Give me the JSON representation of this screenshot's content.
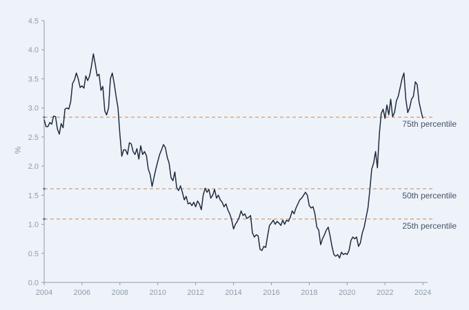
{
  "chart_data": {
    "type": "line",
    "ylabel": "%",
    "xlabel": "",
    "title": "",
    "xlim": [
      2004.0,
      2024.25
    ],
    "ylim": [
      0,
      4.5
    ],
    "x_ticks": [
      "2004",
      "2006",
      "2008",
      "2010",
      "2012",
      "2014",
      "2016",
      "2018",
      "2020",
      "2022",
      "2024"
    ],
    "y_ticks": [
      "0.0",
      "0.5",
      "1.0",
      "1.5",
      "2.0",
      "2.5",
      "3.0",
      "3.5",
      "4.0",
      "4.5"
    ],
    "grid": false,
    "colors": {
      "line": "#1c2a3f",
      "reference": "#d4a07c",
      "axis": "#8a9bb0"
    },
    "reference_lines": [
      {
        "label": "75th percentile",
        "value": 2.84
      },
      {
        "label": "50th percentile",
        "value": 1.61
      },
      {
        "label": "25th percentile",
        "value": 1.09
      }
    ],
    "series": [
      {
        "x": [
          2004.0,
          2004.1,
          2004.2,
          2004.3,
          2004.4,
          2004.5,
          2004.6,
          2004.7,
          2004.8,
          2004.9,
          2005.0,
          2005.1,
          2005.2,
          2005.3,
          2005.4,
          2005.5,
          2005.6,
          2005.7,
          2005.8,
          2005.9,
          2006.0,
          2006.1,
          2006.2,
          2006.3,
          2006.4,
          2006.5,
          2006.6,
          2006.7,
          2006.8,
          2006.9,
          2007.0,
          2007.1,
          2007.2,
          2007.3,
          2007.4,
          2007.5,
          2007.6,
          2007.7,
          2007.8,
          2007.9,
          2008.0,
          2008.1,
          2008.2,
          2008.3,
          2008.4,
          2008.5,
          2008.6,
          2008.7,
          2008.8,
          2008.9,
          2009.0,
          2009.1,
          2009.2,
          2009.3,
          2009.4,
          2009.5,
          2009.6,
          2009.7,
          2009.8,
          2009.9,
          2010.0,
          2010.1,
          2010.2,
          2010.3,
          2010.4,
          2010.5,
          2010.6,
          2010.7,
          2010.8,
          2010.9,
          2011.0,
          2011.1,
          2011.2,
          2011.3,
          2011.4,
          2011.5,
          2011.6,
          2011.7,
          2011.8,
          2011.9,
          2012.0,
          2012.1,
          2012.2,
          2012.3,
          2012.4,
          2012.5,
          2012.6,
          2012.7,
          2012.8,
          2012.9,
          2013.0,
          2013.1,
          2013.2,
          2013.3,
          2013.4,
          2013.5,
          2013.6,
          2013.7,
          2013.8,
          2013.9,
          2014.0,
          2014.1,
          2014.2,
          2014.3,
          2014.4,
          2014.5,
          2014.6,
          2014.7,
          2014.8,
          2014.9,
          2015.0,
          2015.1,
          2015.2,
          2015.3,
          2015.4,
          2015.5,
          2015.6,
          2015.7,
          2015.8,
          2015.9,
          2016.0,
          2016.1,
          2016.2,
          2016.3,
          2016.4,
          2016.5,
          2016.6,
          2016.7,
          2016.8,
          2016.9,
          2017.0,
          2017.1,
          2017.2,
          2017.3,
          2017.4,
          2017.5,
          2017.6,
          2017.7,
          2017.8,
          2017.9,
          2018.0,
          2018.1,
          2018.2,
          2018.3,
          2018.4,
          2018.5,
          2018.6,
          2018.7,
          2018.8,
          2018.9,
          2019.0,
          2019.1,
          2019.2,
          2019.3,
          2019.4,
          2019.5,
          2019.6,
          2019.7,
          2019.8,
          2019.9,
          2020.0,
          2020.1,
          2020.2,
          2020.3,
          2020.4,
          2020.5,
          2020.6,
          2020.7,
          2020.8,
          2020.9,
          2021.0,
          2021.1,
          2021.2,
          2021.3,
          2021.4,
          2021.5,
          2021.6,
          2021.7,
          2021.8,
          2021.9,
          2022.0,
          2022.1,
          2022.2,
          2022.3,
          2022.4,
          2022.5,
          2022.6,
          2022.7,
          2022.8,
          2022.9,
          2023.0,
          2023.1,
          2023.2,
          2023.3,
          2023.4,
          2023.5,
          2023.6,
          2023.7,
          2023.8,
          2023.9,
          2024.0
        ],
        "values": [
          2.8,
          2.68,
          2.68,
          2.75,
          2.72,
          2.86,
          2.85,
          2.64,
          2.55,
          2.73,
          2.66,
          2.98,
          3.0,
          2.98,
          3.1,
          3.42,
          3.48,
          3.6,
          3.5,
          3.35,
          3.38,
          3.34,
          3.55,
          3.47,
          3.55,
          3.72,
          3.93,
          3.75,
          3.55,
          3.58,
          3.3,
          3.37,
          2.95,
          2.88,
          3.0,
          3.5,
          3.6,
          3.42,
          3.2,
          3.0,
          2.55,
          2.17,
          2.28,
          2.28,
          2.2,
          2.4,
          2.38,
          2.25,
          2.2,
          2.3,
          2.12,
          2.35,
          2.2,
          2.25,
          2.18,
          1.95,
          1.85,
          1.65,
          1.8,
          1.95,
          2.08,
          2.2,
          2.28,
          2.37,
          2.32,
          2.15,
          2.05,
          1.8,
          1.75,
          1.9,
          1.63,
          1.58,
          1.66,
          1.55,
          1.42,
          1.48,
          1.35,
          1.37,
          1.32,
          1.38,
          1.3,
          1.4,
          1.35,
          1.25,
          1.5,
          1.62,
          1.55,
          1.6,
          1.45,
          1.5,
          1.6,
          1.45,
          1.5,
          1.42,
          1.38,
          1.3,
          1.35,
          1.25,
          1.18,
          1.08,
          0.92,
          1.0,
          1.05,
          1.12,
          1.23,
          1.15,
          1.18,
          1.1,
          1.12,
          1.15,
          0.85,
          0.78,
          0.82,
          0.8,
          0.57,
          0.55,
          0.62,
          0.6,
          0.8,
          0.98,
          1.02,
          1.07,
          1.0,
          1.05,
          1.02,
          0.98,
          1.07,
          1.0,
          1.07,
          1.05,
          1.12,
          1.23,
          1.18,
          1.28,
          1.35,
          1.42,
          1.45,
          1.5,
          1.55,
          1.5,
          1.32,
          1.28,
          1.3,
          1.18,
          0.95,
          0.9,
          0.65,
          0.75,
          0.82,
          0.9,
          0.95,
          0.8,
          0.62,
          0.48,
          0.45,
          0.48,
          0.42,
          0.52,
          0.48,
          0.5,
          0.48,
          0.55,
          0.72,
          0.78,
          0.75,
          0.78,
          0.62,
          0.68,
          0.85,
          0.95,
          1.12,
          1.28,
          1.6,
          1.95,
          2.05,
          2.25,
          1.97,
          2.55,
          2.9,
          2.98,
          2.82,
          3.05,
          2.88,
          3.15,
          2.85,
          2.92,
          3.12,
          3.2,
          3.35,
          3.5,
          3.6,
          3.15,
          2.92,
          3.0,
          3.15,
          3.2,
          3.45,
          3.4,
          3.1,
          2.95,
          2.82
        ]
      }
    ]
  }
}
